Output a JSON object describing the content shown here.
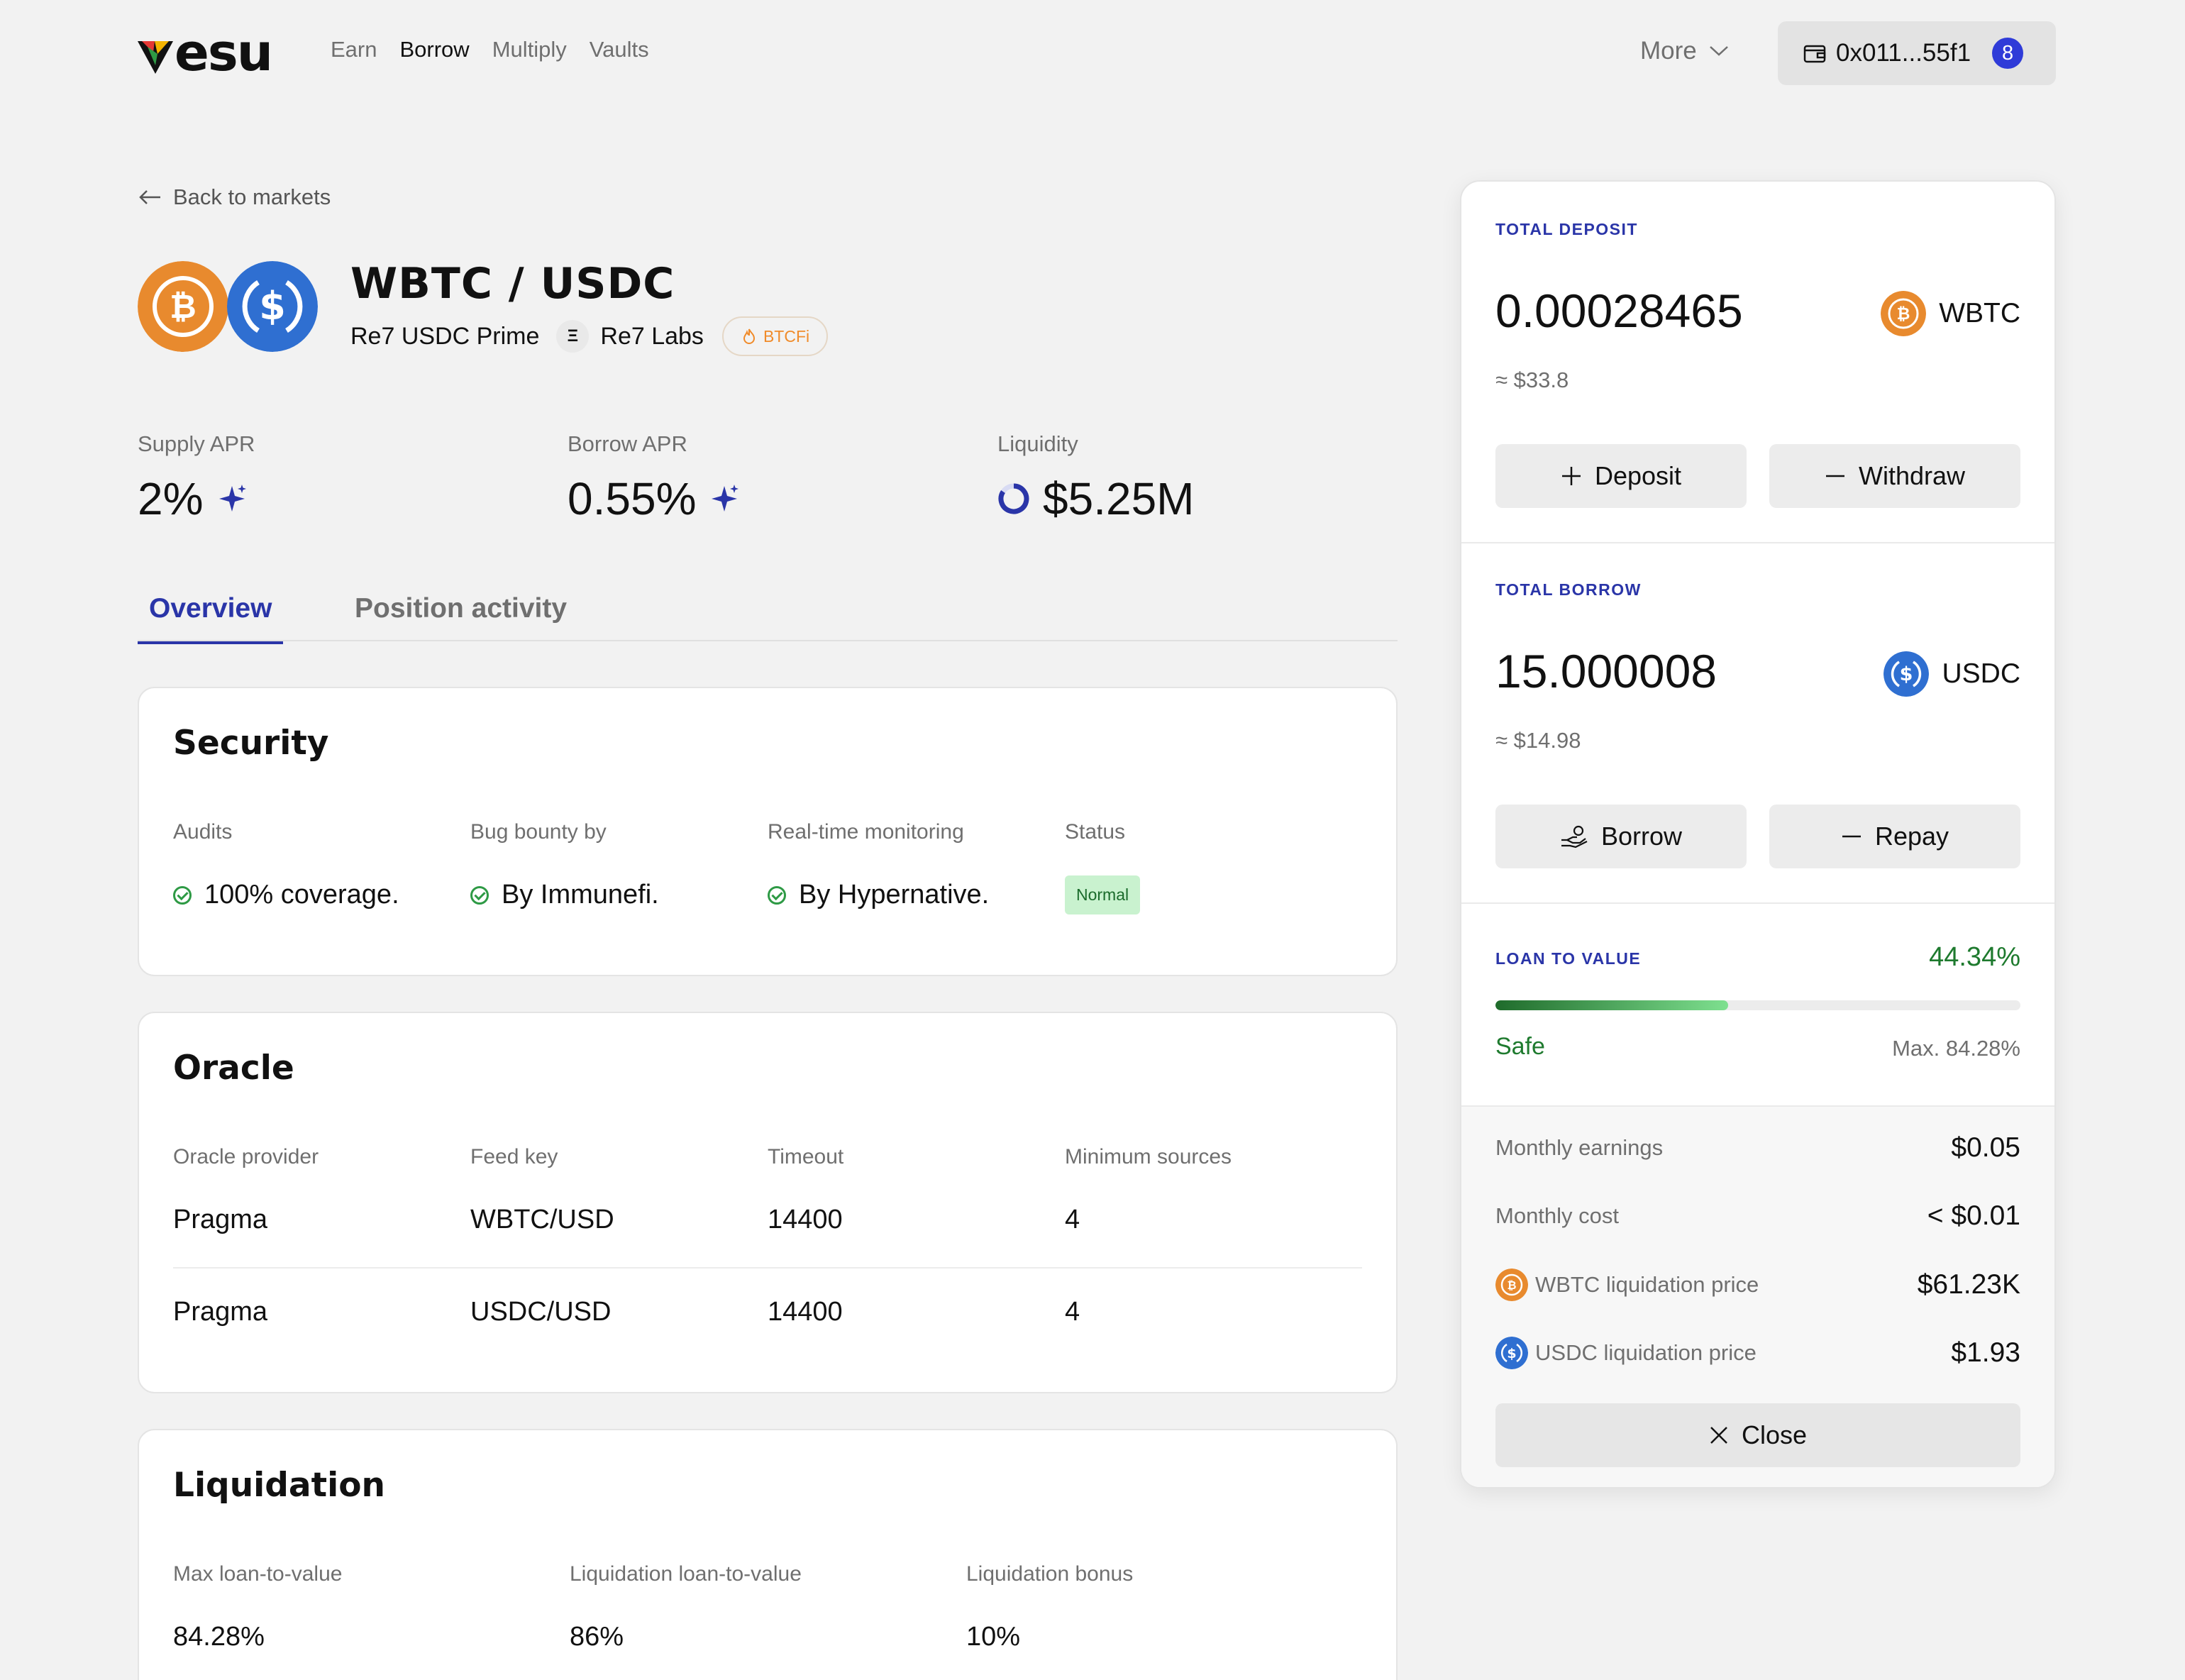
{
  "header": {
    "logo_text": "esu",
    "nav": [
      "Earn",
      "Borrow",
      "Multiply",
      "Vaults"
    ],
    "nav_active": "Borrow",
    "more_label": "More",
    "wallet_address": "0x011...55f1",
    "wallet_count": "8"
  },
  "market": {
    "back_label": "Back to markets",
    "pair_title": "WBTC / USDC",
    "pool_name": "Re7 USDC Prime",
    "curator": "Re7 Labs",
    "curator_icon_letter": "Ξ",
    "tag": "BTCFi",
    "colors": {
      "btc": "#e88a2e",
      "usdc": "#2f6fd1",
      "accent": "#2a35a8",
      "safe": "#1e7a2e"
    }
  },
  "stats": {
    "supply_apr_label": "Supply APR",
    "supply_apr": "2%",
    "borrow_apr_label": "Borrow APR",
    "borrow_apr": "0.55%",
    "liquidity_label": "Liquidity",
    "liquidity": "$5.25M"
  },
  "tabs": [
    "Overview",
    "Position activity"
  ],
  "security": {
    "title": "Security",
    "headers": [
      "Audits",
      "Bug bounty by",
      "Real-time monitoring",
      "Status"
    ],
    "audits": "100% coverage.",
    "bug_bounty": "By Immunefi.",
    "monitoring": "By Hypernative.",
    "status": "Normal"
  },
  "oracle": {
    "title": "Oracle",
    "headers": [
      "Oracle provider",
      "Feed key",
      "Timeout",
      "Minimum sources"
    ],
    "rows": [
      [
        "Pragma",
        "WBTC/USD",
        "14400",
        "4"
      ],
      [
        "Pragma",
        "USDC/USD",
        "14400",
        "4"
      ]
    ]
  },
  "liquidation": {
    "title": "Liquidation",
    "headers": [
      "Max loan-to-value",
      "Liquidation loan-to-value",
      "Liquidation bonus"
    ],
    "values": [
      "84.28%",
      "86%",
      "10%"
    ]
  },
  "position": {
    "deposit_title": "TOTAL DEPOSIT",
    "deposit_amount": "0.00028465",
    "deposit_asset": "WBTC",
    "deposit_usd": "≈ $33.8",
    "deposit_btn": "Deposit",
    "withdraw_btn": "Withdraw",
    "borrow_title": "TOTAL BORROW",
    "borrow_amount": "15.000008",
    "borrow_asset": "USDC",
    "borrow_usd": "≈ $14.98",
    "borrow_btn": "Borrow",
    "repay_btn": "Repay",
    "ltv_title": "LOAN TO VALUE",
    "ltv_value": "44.34%",
    "ltv_fraction": 0.4434,
    "ltv_status": "Safe",
    "ltv_max": "Max. 84.28%",
    "monthly_earnings_label": "Monthly earnings",
    "monthly_earnings": "$0.05",
    "monthly_cost_label": "Monthly cost",
    "monthly_cost": "< $0.01",
    "wbtc_liq_label": "WBTC liquidation price",
    "wbtc_liq": "$61.23K",
    "usdc_liq_label": "USDC liquidation price",
    "usdc_liq": "$1.93",
    "close_btn": "Close"
  }
}
